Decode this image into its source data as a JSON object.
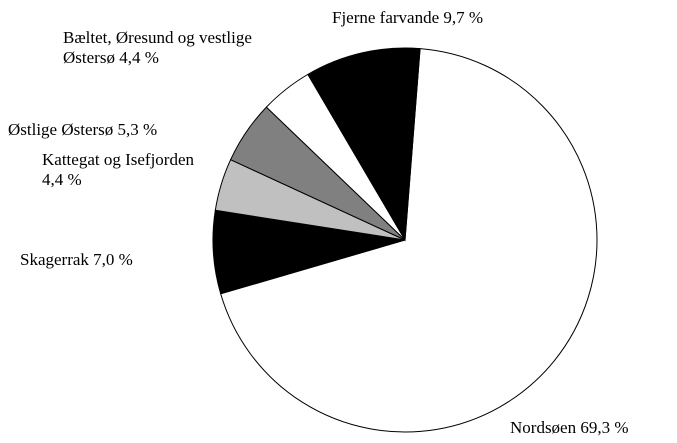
{
  "chart_data": {
    "type": "pie",
    "categories": [
      "Nordsøen",
      "Skagerrak",
      "Kattegat og Isefjorden",
      "Østlige Østersø",
      "Bæltet, Øresund og vestlige Østersø",
      "Fjerne farvande"
    ],
    "values": [
      69.3,
      7.0,
      4.4,
      5.3,
      4.4,
      9.7
    ],
    "value_labels": [
      "69,3 %",
      "7,0 %",
      "4,4 %",
      "5,3 %",
      "4,4 %",
      "9,7 %"
    ],
    "colors": [
      "#ffffff",
      "#000000",
      "#c0c0c0",
      "#808080",
      "#ffffff",
      "#000000"
    ]
  }
}
